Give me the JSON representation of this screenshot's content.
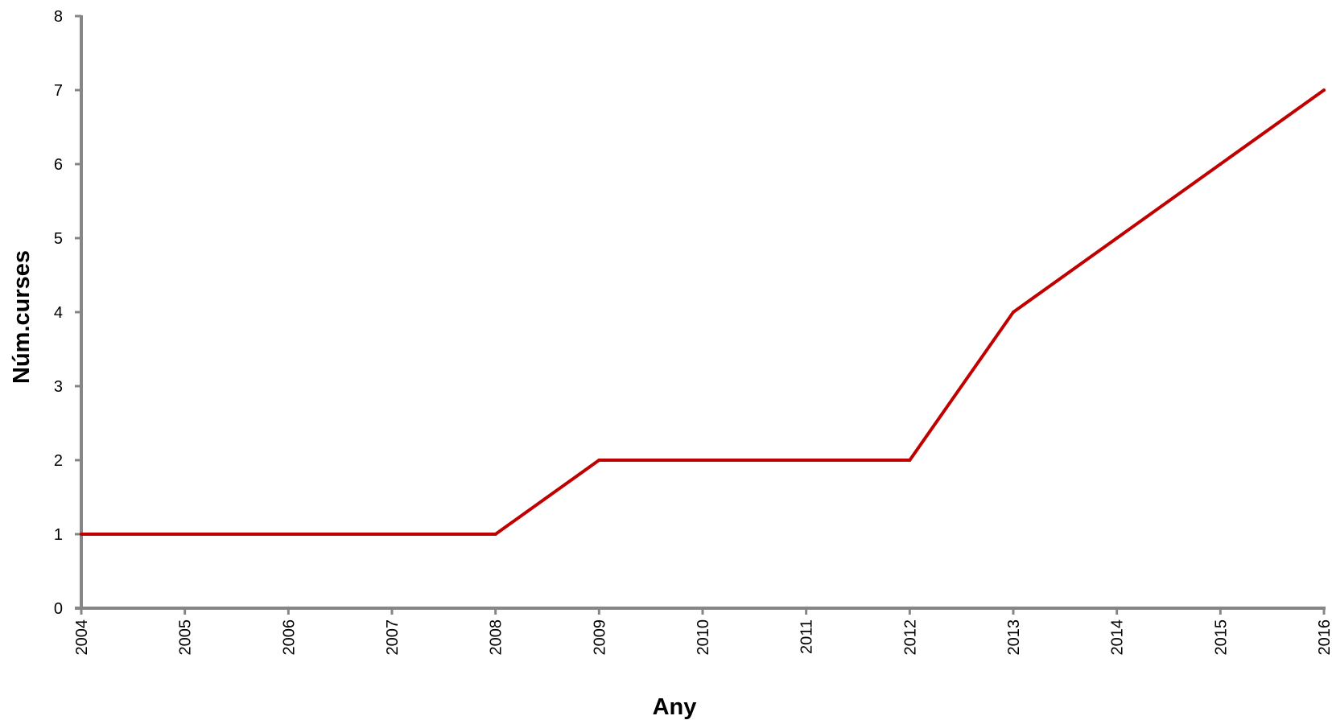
{
  "chart_data": {
    "type": "line",
    "title": "",
    "xlabel": "Any",
    "ylabel": "Núm.curses",
    "x": [
      "2004",
      "2005",
      "2006",
      "2007",
      "2008",
      "2009",
      "2010",
      "2011",
      "2012",
      "2013",
      "2014",
      "2015",
      "2016"
    ],
    "series": [
      {
        "values": [
          1,
          1,
          1,
          1,
          1,
          2,
          2,
          2,
          2,
          4,
          5,
          6,
          7
        ],
        "color": "#c00000"
      }
    ],
    "ylim": [
      0,
      8
    ],
    "yticks": [
      "0",
      "1",
      "2",
      "3",
      "4",
      "5",
      "6",
      "7",
      "8"
    ],
    "grid": false,
    "legend": "none",
    "axis_color": "#868686"
  }
}
